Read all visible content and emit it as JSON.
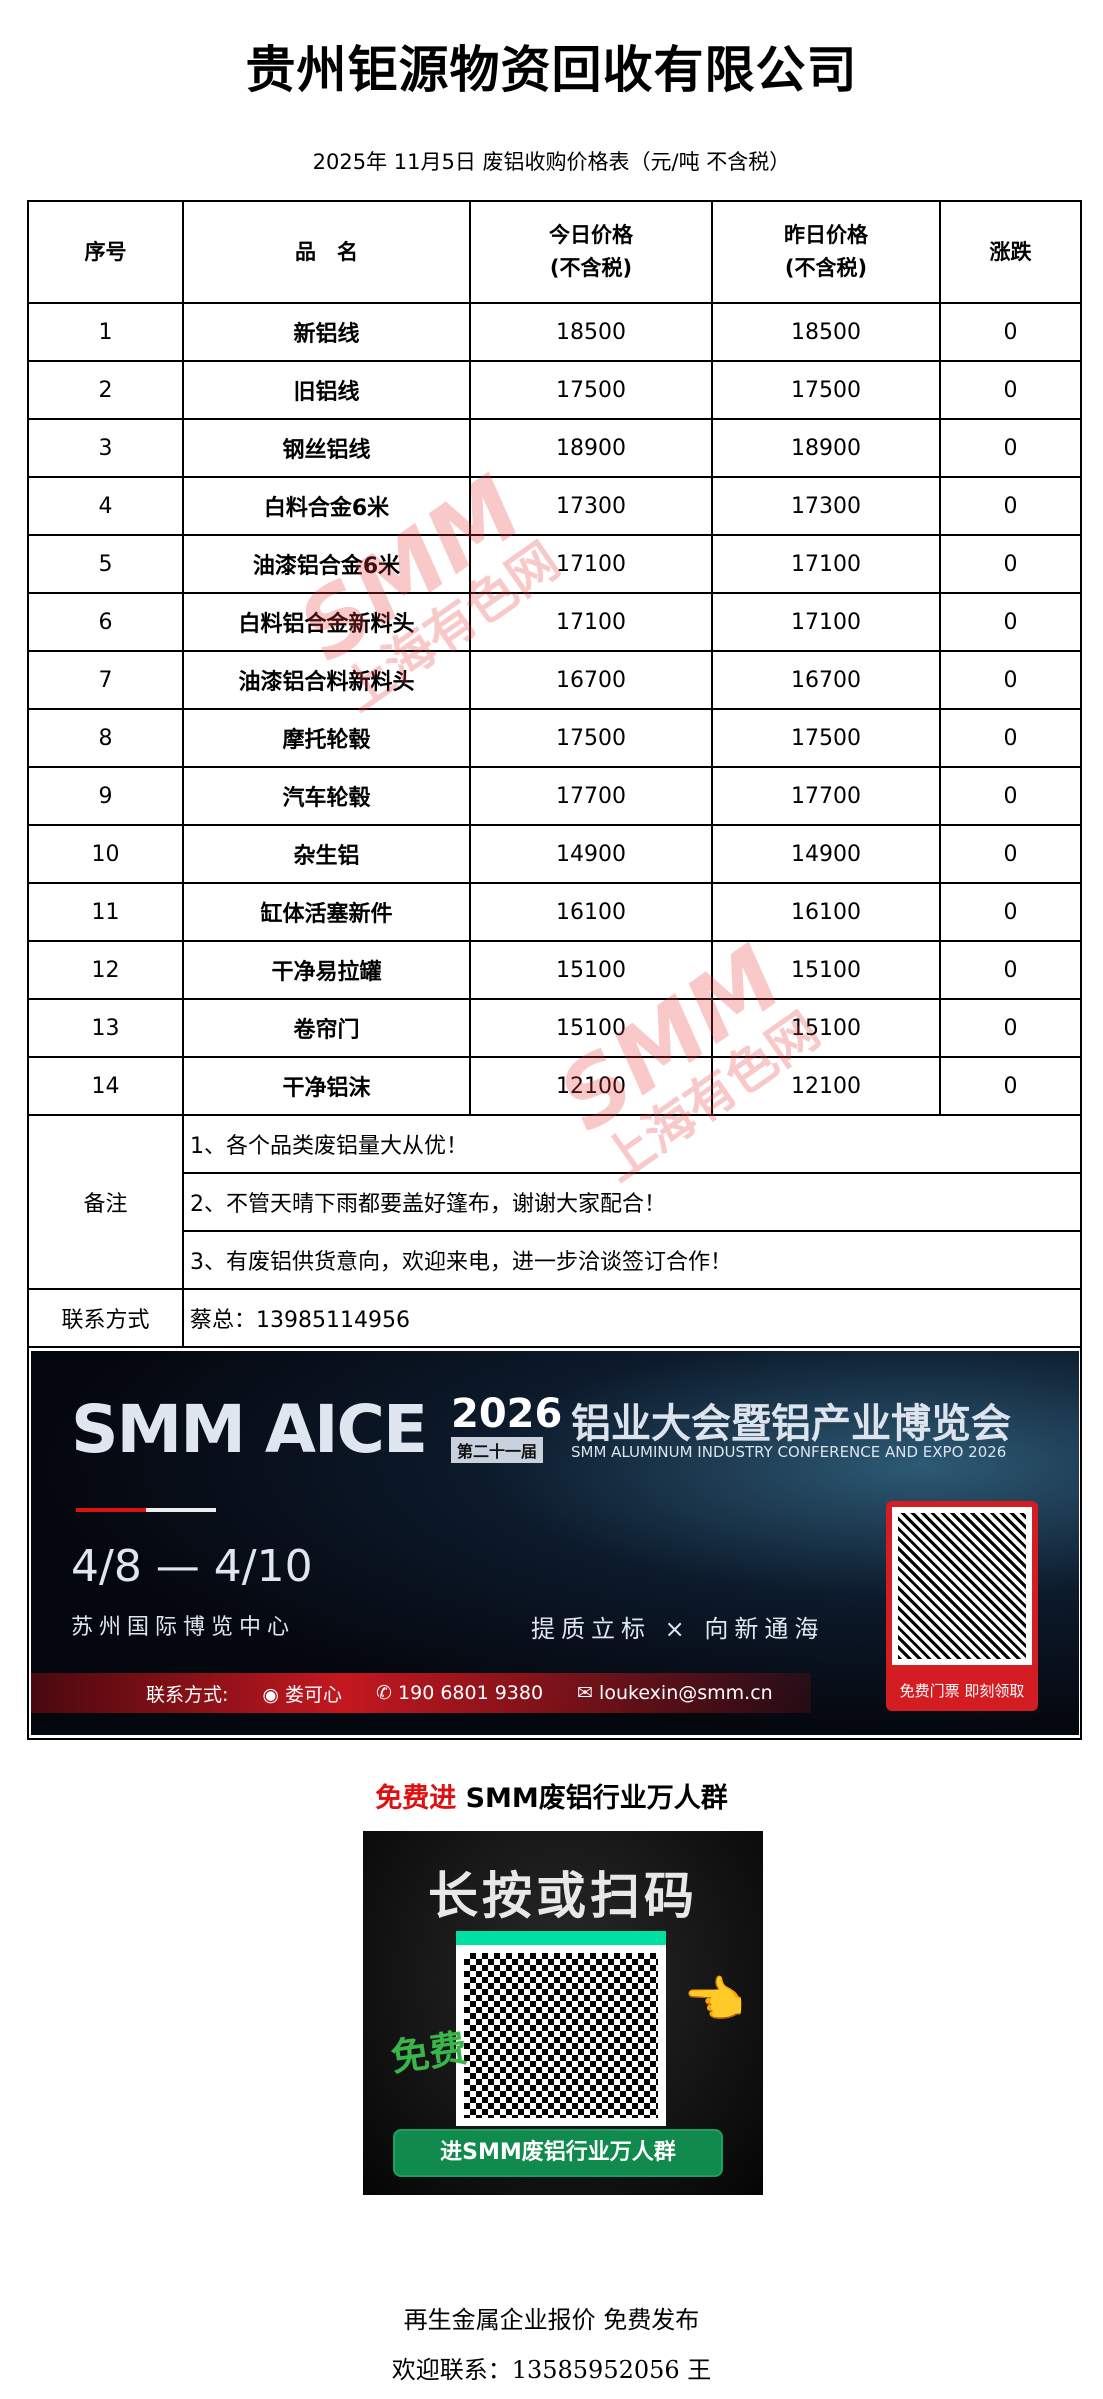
{
  "title": "贵州钜源物资回收有限公司",
  "subtitle": "2025年 11月5日 废铝收购价格表（元/吨  不含税）",
  "table": {
    "headers": [
      "序号",
      "品　名",
      "今日价格\n(不含税)",
      "昨日价格\n(不含税)",
      "涨跌"
    ],
    "rows": [
      [
        "1",
        "新铝线",
        "18500",
        "18500",
        "0"
      ],
      [
        "2",
        "旧铝线",
        "17500",
        "17500",
        "0"
      ],
      [
        "3",
        "钢丝铝线",
        "18900",
        "18900",
        "0"
      ],
      [
        "4",
        "白料合金6米",
        "17300",
        "17300",
        "0"
      ],
      [
        "5",
        "油漆铝合金6米",
        "17100",
        "17100",
        "0"
      ],
      [
        "6",
        "白料铝合金新料头",
        "17100",
        "17100",
        "0"
      ],
      [
        "7",
        "油漆铝合料新料头",
        "16700",
        "16700",
        "0"
      ],
      [
        "8",
        "摩托轮毂",
        "17500",
        "17500",
        "0"
      ],
      [
        "9",
        "汽车轮毂",
        "17700",
        "17700",
        "0"
      ],
      [
        "10",
        "杂生铝",
        "14900",
        "14900",
        "0"
      ],
      [
        "11",
        "缸体活塞新件",
        "16100",
        "16100",
        "0"
      ],
      [
        "12",
        "干净易拉罐",
        "15100",
        "15100",
        "0"
      ],
      [
        "13",
        "卷帘门",
        "15100",
        "15100",
        "0"
      ],
      [
        "14",
        "干净铝沫",
        "12100",
        "12100",
        "0"
      ]
    ],
    "notes_label": "备注",
    "notes": [
      "1、各个品类废铝量大从优！",
      "2、不管天晴下雨都要盖好篷布，谢谢大家配合！",
      "3、有废铝供货意向，欢迎来电，进一步洽谈签订合作！"
    ],
    "contact_label": "联系方式",
    "contact_value": "蔡总：13985114956"
  },
  "banner": {
    "brand": "SMM AICE",
    "year": "2026",
    "edition": "第二十一届",
    "title_cn": "铝业大会暨铝产业博览会",
    "title_en": "SMM ALUMINUM INDUSTRY CONFERENCE AND EXPO 2026",
    "dates": "4/8 — 4/10",
    "venue": "苏州国际博览中心",
    "slogan": "提质立标 × 向新通海",
    "contact_label": "联系方式:",
    "contact_name": "娄可心",
    "phone": "190 6801 9380",
    "email": "loukexin@smm.cn",
    "qr_caption": "免费门票 即刻领取"
  },
  "join": {
    "red": "免费进",
    "black": " SMM废铝行业万人群"
  },
  "qr_card": {
    "heading": "长按或扫码",
    "free": "免费",
    "button": "进SMM废铝行业万人群"
  },
  "footer": {
    "line1": "再生金属企业报价  免费发布",
    "line2": "欢迎联系：13585952056  王"
  },
  "watermark": {
    "logo": "SMM",
    "text": "上海有色网",
    "color": "#eb3c3c"
  }
}
